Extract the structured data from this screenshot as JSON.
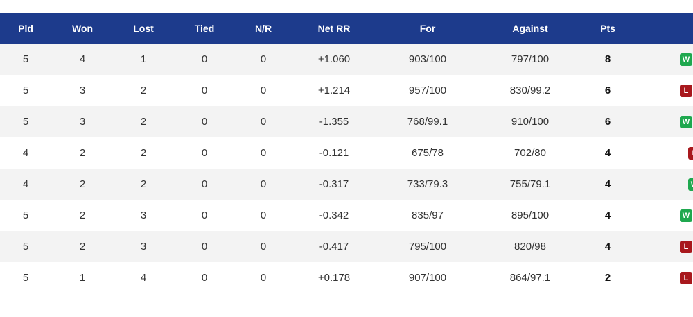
{
  "colors": {
    "header_bg": "#1d3b8c",
    "win": "#1fa84f",
    "loss": "#a8181d"
  },
  "columns": [
    "Pld",
    "Won",
    "Lost",
    "Tied",
    "N/R",
    "Net RR",
    "For",
    "Against",
    "Pts"
  ],
  "rows": [
    {
      "pld": "5",
      "won": "4",
      "lost": "1",
      "tied": "0",
      "nr": "0",
      "nrr": "+1.060",
      "for": "903/100",
      "against": "797/100",
      "pts": "8",
      "form": "W"
    },
    {
      "pld": "5",
      "won": "3",
      "lost": "2",
      "tied": "0",
      "nr": "0",
      "nrr": "+1.214",
      "for": "957/100",
      "against": "830/99.2",
      "pts": "6",
      "form": "L"
    },
    {
      "pld": "5",
      "won": "3",
      "lost": "2",
      "tied": "0",
      "nr": "0",
      "nrr": "-1.355",
      "for": "768/99.1",
      "against": "910/100",
      "pts": "6",
      "form": "W"
    },
    {
      "pld": "4",
      "won": "2",
      "lost": "2",
      "tied": "0",
      "nr": "0",
      "nrr": "-0.121",
      "for": "675/78",
      "against": "702/80",
      "pts": "4",
      "form": "L"
    },
    {
      "pld": "4",
      "won": "2",
      "lost": "2",
      "tied": "0",
      "nr": "0",
      "nrr": "-0.317",
      "for": "733/79.3",
      "against": "755/79.1",
      "pts": "4",
      "form": "W"
    },
    {
      "pld": "5",
      "won": "2",
      "lost": "3",
      "tied": "0",
      "nr": "0",
      "nrr": "-0.342",
      "for": "835/97",
      "against": "895/100",
      "pts": "4",
      "form": "W"
    },
    {
      "pld": "5",
      "won": "2",
      "lost": "3",
      "tied": "0",
      "nr": "0",
      "nrr": "-0.417",
      "for": "795/100",
      "against": "820/98",
      "pts": "4",
      "form": "L"
    },
    {
      "pld": "5",
      "won": "1",
      "lost": "4",
      "tied": "0",
      "nr": "0",
      "nrr": "+0.178",
      "for": "907/100",
      "against": "864/97.1",
      "pts": "2",
      "form": "L"
    }
  ]
}
